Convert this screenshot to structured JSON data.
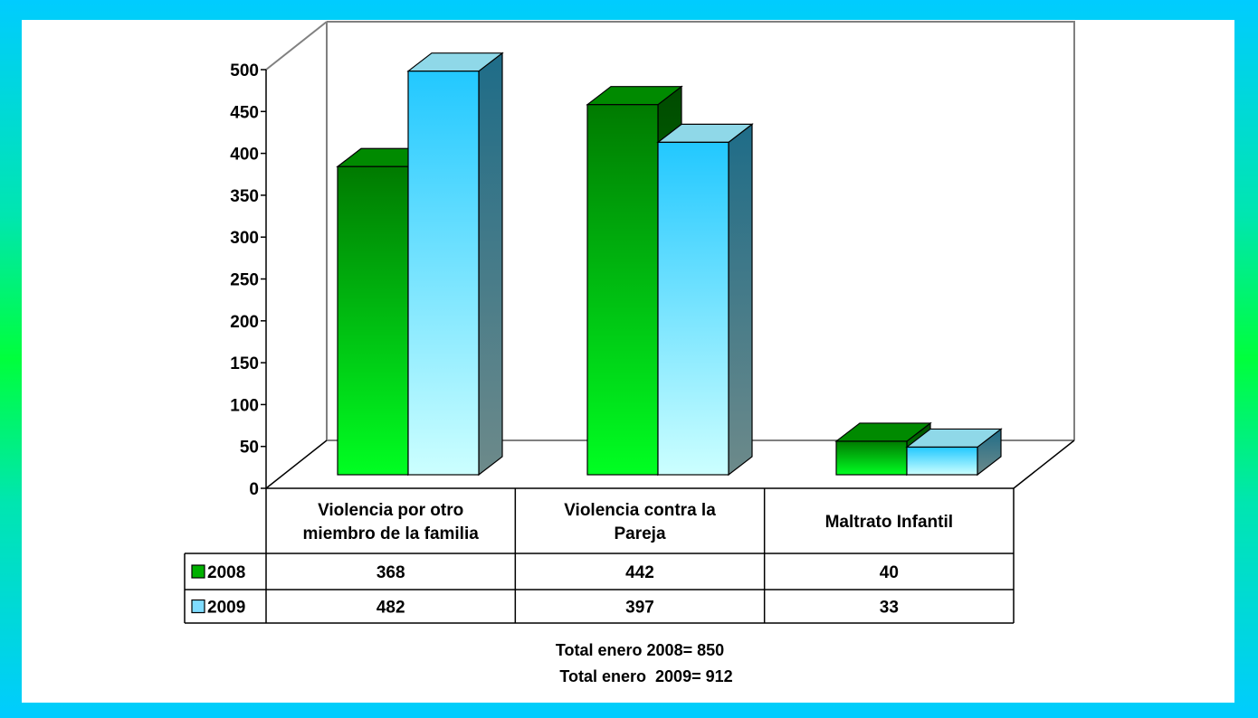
{
  "chart_data": {
    "type": "bar",
    "categories": [
      "Violencia por otro miembro de la familia",
      "Violencia contra la Pareja",
      "Maltrato Infantil"
    ],
    "category_lines": [
      [
        "Violencia por otro",
        "miembro de la familia"
      ],
      [
        "Violencia contra la",
        "Pareja"
      ],
      [
        "Maltrato Infantil"
      ]
    ],
    "series": [
      {
        "name": "2008",
        "values": [
          368,
          442,
          40
        ],
        "display": [
          "368",
          "442",
          "40"
        ],
        "color": "#00a000"
      },
      {
        "name": "2009",
        "values": [
          482,
          397,
          33
        ],
        "display": [
          "482",
          "397",
          "33"
        ],
        "color": "#33ccff"
      }
    ],
    "ylim": [
      0,
      500
    ],
    "yticks": [
      "0",
      "50",
      "100",
      "150",
      "200",
      "250",
      "300",
      "350",
      "400",
      "450",
      "500"
    ],
    "grid": false,
    "legend": "data-table-left",
    "annotations": [
      "Total enero 2008= 850",
      "Total enero  2009= 912"
    ]
  },
  "colors": {
    "frame_top": "#00ccff",
    "frame_middle": "#00ff3c",
    "green_light": "#00ff22",
    "green_dark": "#007a00",
    "blue_light": "#ccffff",
    "blue_dark": "#22c8ff"
  }
}
